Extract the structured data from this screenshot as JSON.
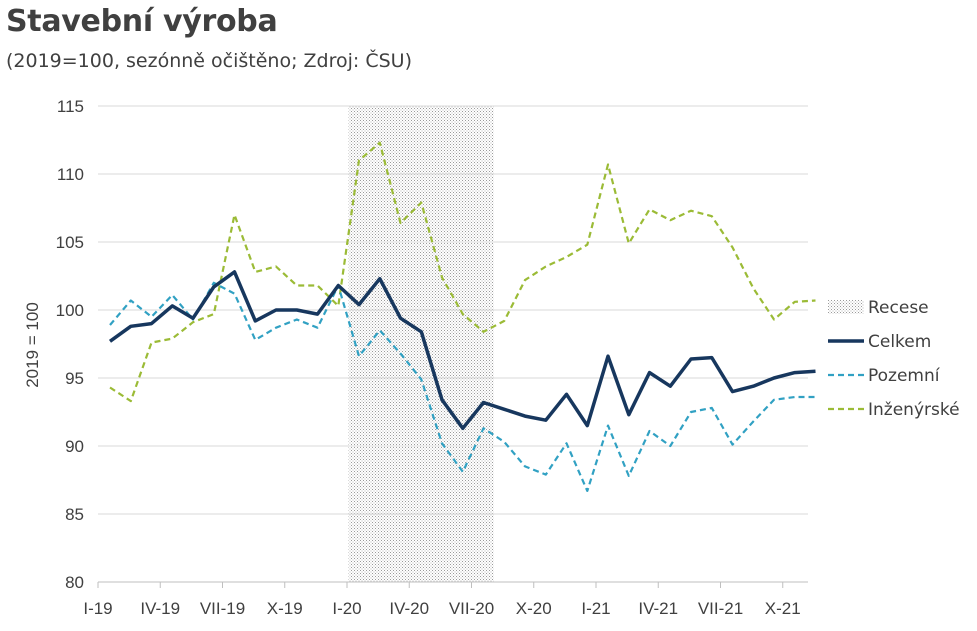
{
  "chart_data": {
    "type": "line",
    "title": "Stavební výroba",
    "subtitle": "(2019=100, sezónně očištěno; Zdroj: ČSU)",
    "ylabel": "2019 = 100",
    "ylim": [
      80,
      115
    ],
    "yticks": [
      80,
      85,
      90,
      95,
      100,
      105,
      110,
      115
    ],
    "x_tick_labels": [
      "I-19",
      "IV-19",
      "VII-19",
      "X-19",
      "I-20",
      "IV-20",
      "VII-20",
      "X-20",
      "I-21",
      "IV-21",
      "VII-21",
      "X-21"
    ],
    "months": [
      "I-19",
      "II-19",
      "III-19",
      "IV-19",
      "V-19",
      "VI-19",
      "VII-19",
      "VIII-19",
      "IX-19",
      "X-19",
      "XI-19",
      "XII-19",
      "I-20",
      "II-20",
      "III-20",
      "IV-20",
      "V-20",
      "VI-20",
      "VII-20",
      "VIII-20",
      "IX-20",
      "X-20",
      "XI-20",
      "XII-20",
      "I-21",
      "II-21",
      "III-21",
      "IV-21",
      "V-21",
      "VI-21",
      "VII-21",
      "VIII-21",
      "IX-21",
      "X-21",
      "XI-21"
    ],
    "recession": {
      "name": "Recese",
      "from": "I-20",
      "to": "VII-20"
    },
    "series": [
      {
        "name": "Celkem",
        "color": "#17375e",
        "style": "solid",
        "values": [
          97.7,
          98.8,
          99.0,
          100.3,
          99.4,
          101.7,
          102.8,
          99.2,
          100.0,
          100.0,
          99.7,
          101.8,
          100.4,
          102.3,
          99.4,
          98.4,
          93.4,
          91.3,
          93.2,
          92.7,
          92.2,
          91.9,
          93.8,
          91.5,
          96.6,
          92.3,
          95.4,
          94.4,
          96.4,
          96.5,
          94.0,
          94.4,
          95.0,
          95.4,
          95.5
        ]
      },
      {
        "name": "Pozemní",
        "color": "#31a1c3",
        "style": "dashed",
        "values": [
          98.9,
          100.7,
          99.5,
          101.1,
          99.3,
          102.0,
          101.2,
          97.8,
          98.7,
          99.3,
          98.7,
          101.8,
          96.6,
          98.5,
          96.8,
          94.9,
          90.2,
          88.1,
          91.3,
          90.3,
          88.5,
          87.9,
          90.2,
          86.7,
          91.5,
          87.8,
          91.1,
          90.0,
          92.5,
          92.8,
          90.1,
          91.8,
          93.4,
          93.6,
          93.6
        ]
      },
      {
        "name": "Inženýrské",
        "color": "#9bbb36",
        "style": "dashed",
        "values": [
          94.3,
          93.3,
          97.6,
          97.9,
          99.1,
          99.7,
          107.0,
          102.8,
          103.2,
          101.8,
          101.8,
          100.3,
          111.0,
          112.3,
          106.4,
          107.9,
          102.4,
          99.7,
          98.4,
          99.2,
          102.2,
          103.2,
          103.9,
          104.8,
          110.7,
          104.9,
          107.4,
          106.6,
          107.3,
          106.9,
          104.6,
          101.6,
          99.3,
          100.6,
          100.7
        ]
      }
    ],
    "legend_position": "right",
    "grid": "horizontal"
  }
}
